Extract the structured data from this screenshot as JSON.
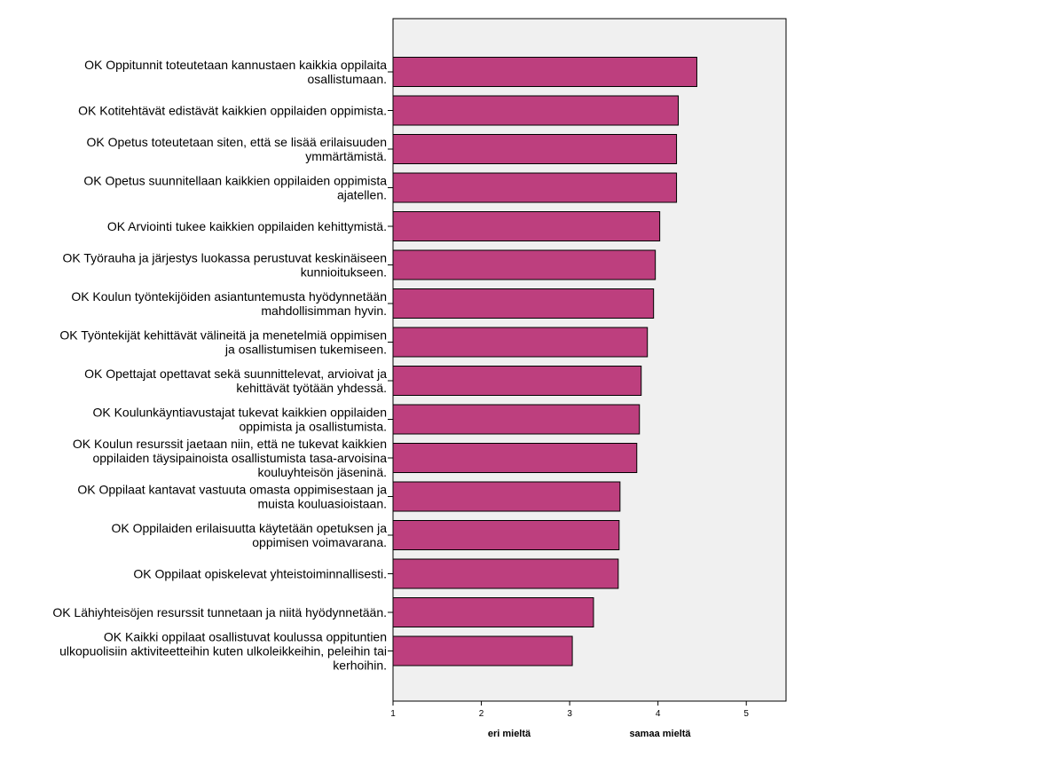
{
  "chart_data": {
    "type": "bar",
    "orientation": "horizontal",
    "title": "",
    "xlabel": "",
    "ylabel": "",
    "xlim": [
      1,
      5.45
    ],
    "x_ticks": [
      1,
      2,
      3,
      4,
      5
    ],
    "grid": false,
    "bar_color": "#bd3f7e",
    "plot_background": "#f0f0f0",
    "axis_notes": [
      "eri mieltä",
      "samaa mieltä"
    ],
    "categories": [
      [
        "OK Oppitunnit toteutetaan kannustaen kaikkia oppilaita",
        "osallistumaan."
      ],
      [
        "OK Kotitehtävät edistävät kaikkien oppilaiden oppimista."
      ],
      [
        "OK Opetus toteutetaan siten, että se lisää erilaisuuden",
        "ymmärtämistä."
      ],
      [
        "OK Opetus suunnitellaan kaikkien oppilaiden oppimista",
        "ajatellen."
      ],
      [
        "OK Arviointi tukee kaikkien oppilaiden kehittymistä."
      ],
      [
        "OK Työrauha ja järjestys luokassa perustuvat keskinäiseen",
        "kunnioitukseen."
      ],
      [
        "OK Koulun työntekijöiden asiantuntemusta hyödynnetään",
        "mahdollisimman hyvin."
      ],
      [
        "OK Työntekijät kehittävät välineitä ja menetelmiä oppimisen",
        "ja osallistumisen tukemiseen."
      ],
      [
        "OK Opettajat opettavat sekä suunnittelevat, arvioivat ja",
        "kehittävät työtään yhdessä."
      ],
      [
        "OK Koulunkäyntiavustajat tukevat kaikkien oppilaiden",
        "oppimista ja osallistumista."
      ],
      [
        "OK Koulun resurssit jaetaan niin, että ne tukevat kaikkien",
        "oppilaiden täysipainoista osallistumista tasa-arvoisina",
        "kouluyhteisön jäseninä."
      ],
      [
        "OK Oppilaat kantavat vastuuta omasta oppimisestaan ja",
        "muista kouluasioistaan."
      ],
      [
        "OK Oppilaiden erilaisuutta käytetään opetuksen ja",
        "oppimisen voimavarana."
      ],
      [
        "OK Oppilaat opiskelevat yhteistoiminnallisesti."
      ],
      [
        "OK Lähiyhteisöjen resurssit tunnetaan ja niitä hyödynnetään."
      ],
      [
        "OK Kaikki oppilaat osallistuvat koulussa oppituntien",
        "ulkopuolisiin aktiviteetteihin kuten ulkoleikkeihin, peleihin tai",
        "kerhoihin."
      ]
    ],
    "values": [
      4.44,
      4.23,
      4.21,
      4.21,
      4.02,
      3.97,
      3.95,
      3.88,
      3.81,
      3.79,
      3.76,
      3.57,
      3.56,
      3.55,
      3.27,
      3.03
    ]
  }
}
